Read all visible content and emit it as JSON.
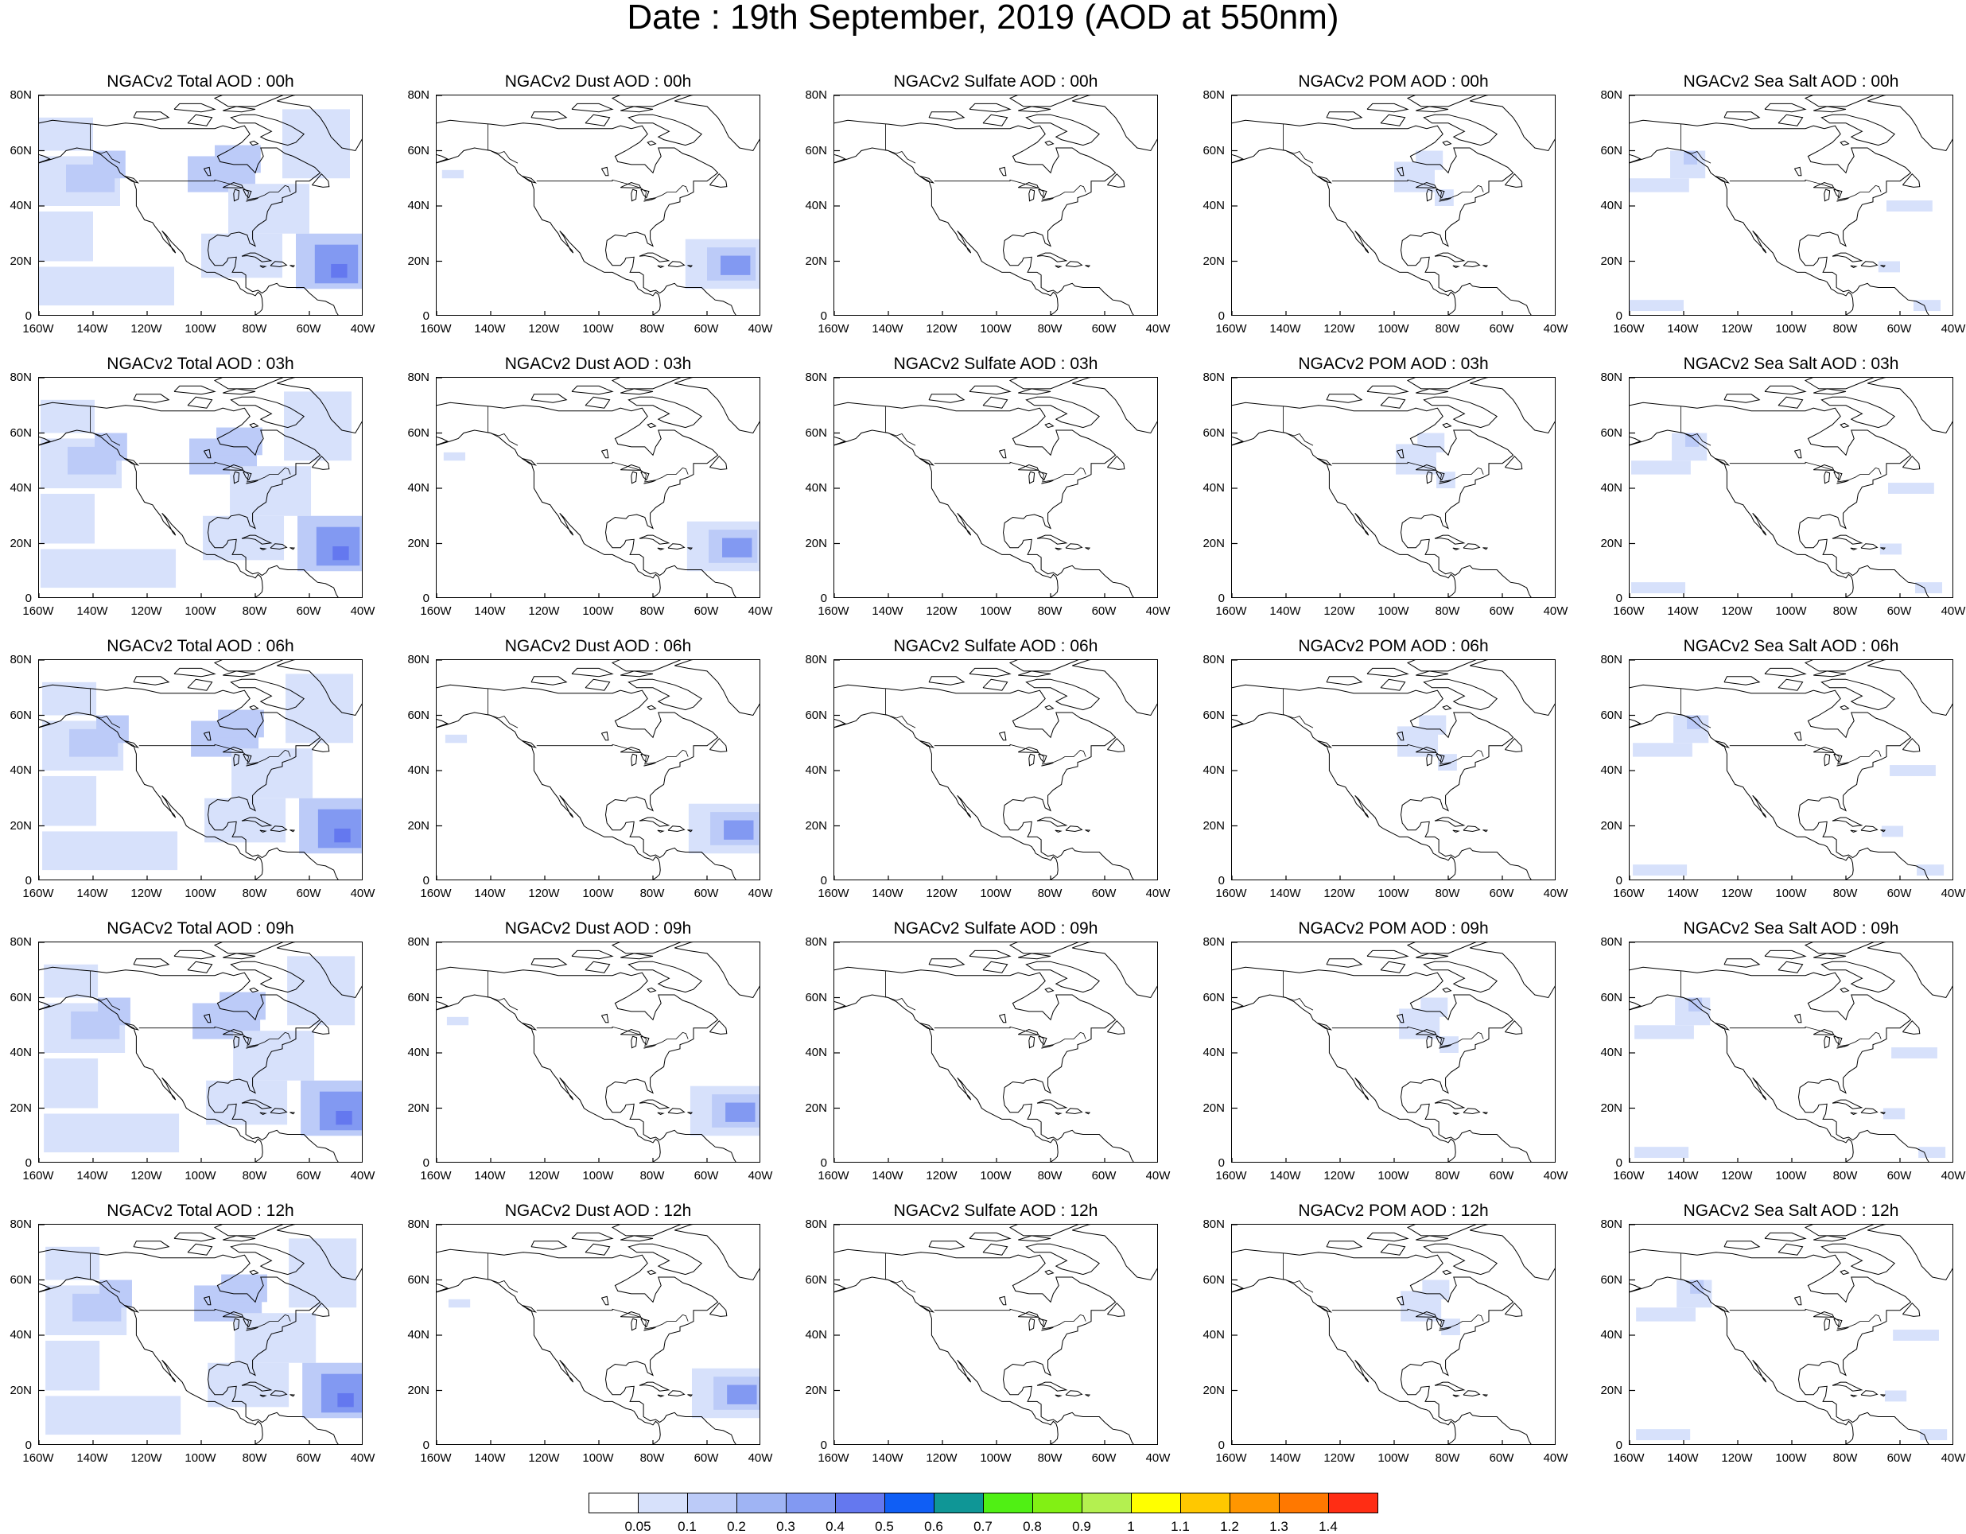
{
  "title": "Date : 19th September, 2019 (AOD at 550nm)",
  "x_ticks": [
    "160W",
    "140W",
    "120W",
    "100W",
    "80W",
    "60W",
    "40W"
  ],
  "y_ticks": [
    "80N",
    "60N",
    "40N",
    "20N",
    "0"
  ],
  "x_range_deg": [
    -160,
    -40
  ],
  "y_range_deg": [
    0,
    80
  ],
  "panel_titles": [
    [
      "NGACv2 Total AOD : 00h",
      "NGACv2 Dust AOD : 00h",
      "NGACv2 Sulfate AOD : 00h",
      "NGACv2 POM AOD : 00h",
      "NGACv2 Sea Salt AOD : 00h"
    ],
    [
      "NGACv2 Total AOD : 03h",
      "NGACv2 Dust AOD : 03h",
      "NGACv2 Sulfate AOD : 03h",
      "NGACv2 POM AOD : 03h",
      "NGACv2 Sea Salt AOD : 03h"
    ],
    [
      "NGACv2 Total AOD : 06h",
      "NGACv2 Dust AOD : 06h",
      "NGACv2 Sulfate AOD : 06h",
      "NGACv2 POM AOD : 06h",
      "NGACv2 Sea Salt AOD : 06h"
    ],
    [
      "NGACv2 Total AOD : 09h",
      "NGACv2 Dust AOD : 09h",
      "NGACv2 Sulfate AOD : 09h",
      "NGACv2 POM AOD : 09h",
      "NGACv2 Sea Salt  AOD : 09h"
    ],
    [
      "NGACv2 Total AOD  : 12h",
      "NGACv2 Dust AOD : 12h",
      "NGACv2 Sulfate AOD : 12h",
      "NGACv2 POM  AOD : 12h",
      "NGACv2 Sea Salt  AOD : 12h"
    ]
  ],
  "colorbar": {
    "labels": [
      "0.05",
      "0.1",
      "0.2",
      "0.3",
      "0.4",
      "0.5",
      "0.6",
      "0.7",
      "0.8",
      "0.9",
      "1",
      "1.1",
      "1.2",
      "1.3",
      "1.4"
    ],
    "colors": [
      "#ffffff",
      "#d7e1fb",
      "#bccbf8",
      "#9fb4f4",
      "#8299f2",
      "#6478ef",
      "#0f5ef5",
      "#0f9696",
      "#50f014",
      "#82f014",
      "#b4f050",
      "#ffff00",
      "#ffc800",
      "#ff9600",
      "#ff7800",
      "#ff2d14"
    ]
  },
  "colors": {
    "coastline": "#000000",
    "very_light": "#d7e1fb",
    "light": "#bccbf8",
    "medium": "#8299f2",
    "strong": "#6478ef",
    "peak": "#0f9696"
  },
  "aerosol_fields": {
    "total": [
      {
        "lon": [
          -160,
          -130
        ],
        "lat": [
          40,
          58
        ],
        "level": 1
      },
      {
        "lon": [
          -150,
          -132
        ],
        "lat": [
          45,
          55
        ],
        "level": 2
      },
      {
        "lon": [
          -140,
          -128
        ],
        "lat": [
          50,
          60
        ],
        "level": 2
      },
      {
        "lon": [
          -160,
          -140
        ],
        "lat": [
          60,
          72
        ],
        "level": 1
      },
      {
        "lon": [
          -160,
          -110
        ],
        "lat": [
          4,
          18
        ],
        "level": 1
      },
      {
        "lon": [
          -160,
          -140
        ],
        "lat": [
          20,
          38
        ],
        "level": 1
      },
      {
        "lon": [
          -105,
          -80
        ],
        "lat": [
          45,
          58
        ],
        "level": 2
      },
      {
        "lon": [
          -95,
          -78
        ],
        "lat": [
          52,
          62
        ],
        "level": 2
      },
      {
        "lon": [
          -90,
          -60
        ],
        "lat": [
          30,
          48
        ],
        "level": 1
      },
      {
        "lon": [
          -70,
          -45
        ],
        "lat": [
          50,
          75
        ],
        "level": 1
      },
      {
        "lon": [
          -100,
          -70
        ],
        "lat": [
          14,
          30
        ],
        "level": 1
      },
      {
        "lon": [
          -65,
          -40
        ],
        "lat": [
          10,
          30
        ],
        "level": 2
      },
      {
        "lon": [
          -58,
          -42
        ],
        "lat": [
          12,
          26
        ],
        "level": 3
      },
      {
        "lon": [
          -52,
          -46
        ],
        "lat": [
          14,
          19
        ],
        "level": 4
      }
    ],
    "dust": [
      {
        "lon": [
          -68,
          -40
        ],
        "lat": [
          10,
          28
        ],
        "level": 1
      },
      {
        "lon": [
          -60,
          -42
        ],
        "lat": [
          13,
          25
        ],
        "level": 2
      },
      {
        "lon": [
          -55,
          -44
        ],
        "lat": [
          15,
          22
        ],
        "level": 3
      },
      {
        "lon": [
          -158,
          -150
        ],
        "lat": [
          50,
          53
        ],
        "level": 1
      }
    ],
    "sulfate": [],
    "pom": [
      {
        "lon": [
          -100,
          -85
        ],
        "lat": [
          45,
          56
        ],
        "level": 1
      },
      {
        "lon": [
          -92,
          -82
        ],
        "lat": [
          53,
          60
        ],
        "level": 1
      },
      {
        "lon": [
          -85,
          -78
        ],
        "lat": [
          40,
          46
        ],
        "level": 1
      }
    ],
    "seasalt": [
      {
        "lon": [
          -160,
          -138
        ],
        "lat": [
          45,
          50
        ],
        "level": 1
      },
      {
        "lon": [
          -145,
          -132
        ],
        "lat": [
          50,
          60
        ],
        "level": 1
      },
      {
        "lon": [
          -140,
          -135
        ],
        "lat": [
          55,
          60
        ],
        "level": 2
      },
      {
        "lon": [
          -65,
          -48
        ],
        "lat": [
          38,
          42
        ],
        "level": 1
      },
      {
        "lon": [
          -160,
          -140
        ],
        "lat": [
          2,
          6
        ],
        "level": 1
      },
      {
        "lon": [
          -55,
          -45
        ],
        "lat": [
          2,
          6
        ],
        "level": 1
      },
      {
        "lon": [
          -68,
          -60
        ],
        "lat": [
          16,
          20
        ],
        "level": 1
      }
    ]
  },
  "coastlines": {
    "north_america_west": [
      [
        -165,
        68
      ],
      [
        -160,
        70
      ],
      [
        -155,
        71
      ],
      [
        -145,
        70
      ],
      [
        -140,
        69.6
      ],
      [
        -135,
        69
      ],
      [
        -128,
        70
      ],
      [
        -122,
        69.5
      ],
      [
        -115,
        68
      ],
      [
        -105,
        68
      ],
      [
        -95,
        68
      ],
      [
        -92,
        69
      ],
      [
        -88,
        68
      ],
      [
        -84,
        69
      ],
      [
        -82,
        66
      ],
      [
        -85,
        63
      ],
      [
        -90,
        60
      ],
      [
        -94,
        58
      ],
      [
        -93,
        56
      ],
      [
        -88,
        55
      ],
      [
        -83,
        55
      ],
      [
        -80,
        52
      ],
      [
        -79,
        55
      ],
      [
        -77,
        58
      ],
      [
        -78,
        61
      ],
      [
        -72,
        61
      ],
      [
        -69,
        59
      ],
      [
        -66,
        58
      ],
      [
        -62,
        56
      ],
      [
        -58,
        54
      ],
      [
        -56,
        52
      ],
      [
        -60,
        49
      ],
      [
        -65,
        49
      ],
      [
        -65,
        45
      ],
      [
        -67,
        44
      ],
      [
        -70,
        43
      ],
      [
        -70,
        41.5
      ],
      [
        -74,
        40.5
      ],
      [
        -75.5,
        38
      ],
      [
        -76,
        35
      ],
      [
        -79,
        33
      ],
      [
        -81,
        31
      ],
      [
        -81,
        28
      ],
      [
        -80,
        25.5
      ],
      [
        -82,
        26.5
      ],
      [
        -83,
        29.5
      ],
      [
        -86,
        30.5
      ],
      [
        -89,
        30
      ],
      [
        -90,
        29
      ],
      [
        -94,
        29.5
      ],
      [
        -97,
        27.5
      ],
      [
        -97.5,
        24
      ],
      [
        -97,
        21
      ],
      [
        -95,
        18.5
      ],
      [
        -92,
        18.5
      ],
      [
        -90.5,
        20
      ],
      [
        -90,
        21.2
      ],
      [
        -87,
        21.5
      ],
      [
        -87.5,
        18
      ],
      [
        -88.5,
        16
      ],
      [
        -85,
        16
      ],
      [
        -83.5,
        15
      ],
      [
        -83.5,
        12
      ],
      [
        -83.5,
        10.5
      ],
      [
        -81,
        9
      ],
      [
        -79,
        9.5
      ],
      [
        -77.5,
        8.5
      ],
      [
        -76,
        9.5
      ],
      [
        -75,
        11
      ],
      [
        -72,
        12
      ],
      [
        -71,
        11
      ],
      [
        -68,
        10.5
      ],
      [
        -64,
        10.5
      ],
      [
        -62,
        10.5
      ],
      [
        -60,
        8.5
      ],
      [
        -57,
        6
      ],
      [
        -54,
        5.5
      ],
      [
        -51,
        4
      ],
      [
        -50,
        1.5
      ],
      [
        -49,
        0
      ]
    ],
    "north_america_pacific": [
      [
        -165,
        68
      ],
      [
        -166,
        65
      ],
      [
        -162,
        64
      ],
      [
        -165,
        62
      ],
      [
        -165,
        60
      ],
      [
        -158,
        58
      ],
      [
        -156,
        57
      ],
      [
        -162,
        55
      ],
      [
        -155,
        57
      ],
      [
        -152,
        58
      ],
      [
        -150,
        60
      ],
      [
        -146,
        61
      ],
      [
        -140,
        60
      ],
      [
        -137,
        58.5
      ],
      [
        -134,
        56
      ],
      [
        -131,
        54
      ],
      [
        -130,
        52
      ],
      [
        -128,
        50.5
      ],
      [
        -125,
        49
      ],
      [
        -124,
        46
      ],
      [
        -124,
        42
      ],
      [
        -124,
        40
      ],
      [
        -122.5,
        37.5
      ],
      [
        -121,
        35
      ],
      [
        -118,
        34
      ],
      [
        -117,
        32.5
      ],
      [
        -115,
        30
      ],
      [
        -114,
        28
      ],
      [
        -112,
        26
      ],
      [
        -110,
        24
      ],
      [
        -109.5,
        23
      ],
      [
        -110.5,
        24
      ],
      [
        -112,
        27
      ],
      [
        -113,
        29
      ],
      [
        -114.5,
        31
      ],
      [
        -113,
        29.5
      ],
      [
        -111,
        27
      ],
      [
        -109,
        25
      ],
      [
        -107,
        23
      ],
      [
        -105.5,
        20
      ],
      [
        -104,
        19
      ],
      [
        -101,
        17.5
      ],
      [
        -98,
        16
      ],
      [
        -95,
        16
      ],
      [
        -92,
        14.5
      ],
      [
        -90,
        13.5
      ],
      [
        -88,
        13
      ],
      [
        -87,
        12.5
      ],
      [
        -86,
        11
      ],
      [
        -85.5,
        10
      ],
      [
        -84.5,
        9.5
      ],
      [
        -83,
        8.5
      ],
      [
        -81,
        8
      ],
      [
        -80,
        7.5
      ],
      [
        -79,
        8.8
      ],
      [
        -78,
        8
      ],
      [
        -77.5,
        6.5
      ],
      [
        -77.3,
        4
      ],
      [
        -77.5,
        2.5
      ],
      [
        -78.5,
        1.5
      ],
      [
        -80,
        0.5
      ],
      [
        -80,
        -1
      ]
    ],
    "greenland": [
      [
        -72,
        78
      ],
      [
        -66,
        80
      ],
      [
        -55,
        82
      ],
      [
        -40,
        83
      ],
      [
        -30,
        83
      ],
      [
        -20,
        82
      ],
      [
        -20,
        70
      ],
      [
        -30,
        68
      ],
      [
        -40,
        65
      ],
      [
        -43,
        60
      ],
      [
        -48,
        61
      ],
      [
        -52,
        65
      ],
      [
        -54,
        69
      ],
      [
        -56,
        72
      ],
      [
        -60,
        76
      ],
      [
        -67,
        77
      ],
      [
        -72,
        78
      ]
    ],
    "baffin": [
      [
        -80,
        73
      ],
      [
        -72,
        71
      ],
      [
        -67,
        69
      ],
      [
        -62,
        66
      ],
      [
        -65,
        63
      ],
      [
        -68,
        62
      ],
      [
        -72,
        63
      ],
      [
        -76,
        64
      ],
      [
        -78,
        65
      ],
      [
        -74,
        67
      ],
      [
        -80,
        70
      ],
      [
        -86,
        70
      ],
      [
        -89,
        72
      ],
      [
        -85,
        73
      ],
      [
        -80,
        73
      ]
    ],
    "ellesmere": [
      [
        -90,
        76
      ],
      [
        -80,
        76
      ],
      [
        -75,
        78
      ],
      [
        -70,
        80
      ],
      [
        -65,
        82
      ],
      [
        -75,
        83
      ],
      [
        -90,
        81
      ],
      [
        -95,
        79
      ],
      [
        -90,
        76
      ]
    ],
    "arctic_island_1": [
      [
        -125,
        72
      ],
      [
        -117,
        71
      ],
      [
        -112,
        72
      ],
      [
        -115,
        74
      ],
      [
        -124,
        74
      ],
      [
        -125,
        72
      ]
    ],
    "arctic_island_2": [
      [
        -110,
        75
      ],
      [
        -100,
        74
      ],
      [
        -95,
        75
      ],
      [
        -100,
        77
      ],
      [
        -108,
        77
      ],
      [
        -110,
        75
      ]
    ],
    "arctic_island_3": [
      [
        -105,
        70
      ],
      [
        -98,
        69
      ],
      [
        -96,
        72
      ],
      [
        -102,
        73
      ],
      [
        -105,
        70
      ]
    ],
    "arctic_island_4": [
      [
        -92,
        74.5
      ],
      [
        -85,
        74
      ],
      [
        -80,
        75
      ],
      [
        -87,
        76
      ],
      [
        -92,
        74.5
      ]
    ],
    "cuba": [
      [
        -85,
        21.8
      ],
      [
        -82,
        23
      ],
      [
        -80,
        23
      ],
      [
        -77,
        21.5
      ],
      [
        -74.2,
        20.2
      ],
      [
        -77.5,
        19.8
      ],
      [
        -80,
        21.5
      ],
      [
        -83,
        22
      ],
      [
        -85,
        21.8
      ]
    ],
    "hispaniola": [
      [
        -74.4,
        18.4
      ],
      [
        -72.7,
        19.9
      ],
      [
        -70,
        19.7
      ],
      [
        -68.4,
        18.6
      ],
      [
        -71,
        18
      ],
      [
        -74.4,
        18.4
      ]
    ],
    "jamaica": [
      [
        -78.3,
        18.4
      ],
      [
        -76.2,
        18.1
      ],
      [
        -77.2,
        17.7
      ],
      [
        -78.3,
        18.4
      ]
    ],
    "puerto_rico": [
      [
        -67.2,
        18.5
      ],
      [
        -65.6,
        18.4
      ],
      [
        -66,
        17.9
      ],
      [
        -67.2,
        18.5
      ]
    ],
    "newfoundland": [
      [
        -59,
        47.6
      ],
      [
        -55.5,
        51.6
      ],
      [
        -53,
        49
      ],
      [
        -52.7,
        47
      ],
      [
        -55,
        46.8
      ],
      [
        -59,
        47.6
      ]
    ],
    "vancouver_island": [
      [
        -128.4,
        50.8
      ],
      [
        -125,
        50
      ],
      [
        -123.4,
        48.4
      ],
      [
        -125.5,
        48.9
      ],
      [
        -128.4,
        50.8
      ]
    ],
    "hudson_islands": [
      [
        -81,
        62
      ],
      [
        -79,
        62.5
      ],
      [
        -80.5,
        63.5
      ],
      [
        -82,
        63
      ],
      [
        -81,
        62
      ]
    ],
    "great_lakes_superior": [
      [
        -92,
        46.7
      ],
      [
        -88,
        48.5
      ],
      [
        -85,
        47.5
      ],
      [
        -84.5,
        46.5
      ],
      [
        -88,
        46.6
      ],
      [
        -92,
        46.7
      ]
    ],
    "great_lakes_michigan": [
      [
        -87.5,
        46
      ],
      [
        -86,
        45.5
      ],
      [
        -86.3,
        42.5
      ],
      [
        -87.8,
        41.8
      ],
      [
        -88,
        44.5
      ],
      [
        -87.5,
        46
      ]
    ],
    "great_lakes_huron": [
      [
        -84.5,
        46
      ],
      [
        -81.5,
        45.3
      ],
      [
        -82.4,
        43
      ],
      [
        -83.5,
        44
      ],
      [
        -84.5,
        46
      ]
    ],
    "great_lakes_erie": [
      [
        -83.4,
        41.7
      ],
      [
        -79,
        42.8
      ],
      [
        -80.5,
        42.3
      ],
      [
        -83.4,
        41.7
      ]
    ],
    "lake_winnipeg": [
      [
        -99,
        53.5
      ],
      [
        -97,
        54
      ],
      [
        -96.5,
        51
      ],
      [
        -97.5,
        51
      ],
      [
        -99,
        53.5
      ]
    ],
    "us_canada_border": [
      [
        -123,
        49
      ],
      [
        -95,
        49
      ],
      [
        -95,
        49.4
      ],
      [
        -89.5,
        48
      ],
      [
        -84.5,
        46.5
      ],
      [
        -82.5,
        45
      ],
      [
        -83,
        42.3
      ],
      [
        -79,
        43
      ],
      [
        -76.5,
        44
      ],
      [
        -74.8,
        45
      ],
      [
        -71.5,
        45
      ],
      [
        -69,
        47.4
      ],
      [
        -67.8,
        47
      ],
      [
        -67,
        45
      ]
    ],
    "alaska_border": [
      [
        -141,
        69.6
      ],
      [
        -141,
        60.3
      ],
      [
        -137,
        59
      ],
      [
        -135,
        59.7
      ],
      [
        -133,
        57
      ],
      [
        -130,
        55.5
      ]
    ]
  }
}
